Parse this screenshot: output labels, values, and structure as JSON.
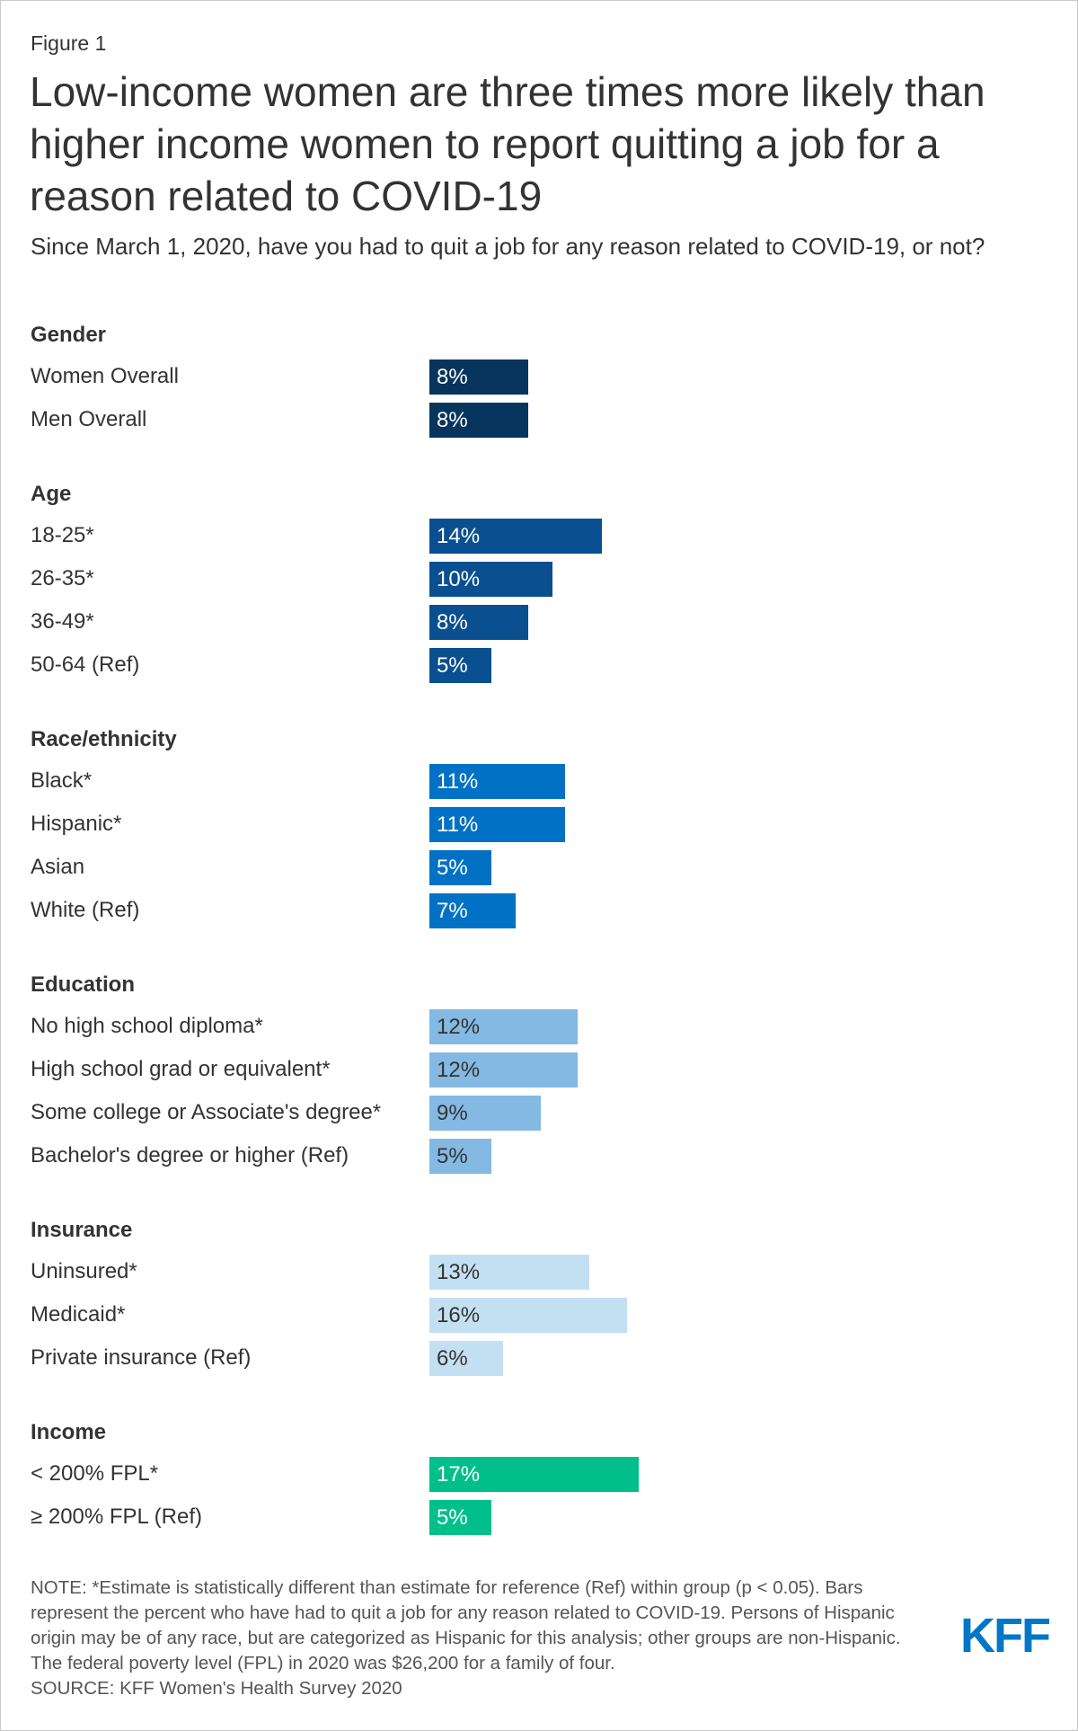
{
  "chart_data": {
    "type": "bar",
    "figure_label": "Figure 1",
    "title": "Low-income women are three times more likely than higher income women to report quitting a job for a reason related to COVID-19",
    "subtitle": "Since March 1, 2020, have you had to quit a job for any reason related to COVID-19, or not?",
    "groups": [
      {
        "name": "Gender",
        "color": "#06345c",
        "categories": [
          "Women Overall",
          "Men Overall"
        ],
        "values": [
          8,
          8
        ],
        "value_labels": [
          "8%",
          "8%"
        ]
      },
      {
        "name": "Age",
        "color": "#0a4f8f",
        "categories": [
          "18-25*",
          "26-35*",
          "36-49*",
          "50-64 (Ref)"
        ],
        "values": [
          14,
          10,
          8,
          5
        ],
        "value_labels": [
          "14%",
          "10%",
          "8%",
          "5%"
        ]
      },
      {
        "name": "Race/ethnicity",
        "color": "#0071c5",
        "categories": [
          "Black*",
          "Hispanic*",
          "Asian",
          "White (Ref)"
        ],
        "values": [
          11,
          11,
          5,
          7
        ],
        "value_labels": [
          "11%",
          "11%",
          "5%",
          "7%"
        ]
      },
      {
        "name": "Education",
        "color": "#83b9e3",
        "categories": [
          "No high school diploma*",
          "High school grad or equivalent*",
          "Some college or Associate's degree*",
          "Bachelor's degree or higher (Ref)"
        ],
        "values": [
          12,
          12,
          9,
          5
        ],
        "value_labels": [
          "12%",
          "12%",
          "9%",
          "5%"
        ]
      },
      {
        "name": "Insurance",
        "color": "#c3e0f3",
        "categories": [
          "Uninsured*",
          "Medicaid*",
          "Private insurance (Ref)"
        ],
        "values": [
          13,
          16,
          6
        ],
        "value_labels": [
          "13%",
          "16%",
          "6%"
        ]
      },
      {
        "name": "Income",
        "color": "#00bf8b",
        "categories": [
          "< 200% FPL*",
          "≥ 200% FPL (Ref)"
        ],
        "values": [
          17,
          5
        ],
        "value_labels": [
          "17%",
          "5%"
        ]
      }
    ],
    "note": "NOTE: *Estimate is statistically different than estimate for reference (Ref) within group (p < 0.05). Bars represent the percent who have had to quit a job for any reason related to COVID-19. Persons of Hispanic origin may be of any race, but are categorized as Hispanic for this analysis; other groups are non-Hispanic. The federal poverty level (FPL) in 2020 was $26,200 for a family of four.",
    "source": "SOURCE: KFF Women's Health Survey 2020",
    "logo": "KFF"
  }
}
